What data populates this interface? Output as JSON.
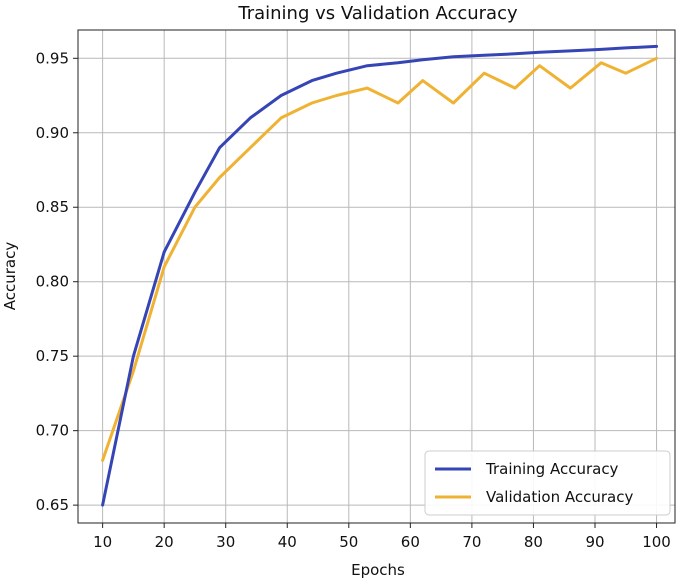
{
  "chart_data": {
    "type": "line",
    "title": "Training vs Validation Accuracy",
    "xlabel": "Epochs",
    "ylabel": "Accuracy",
    "xlim": [
      6,
      103
    ],
    "ylim": [
      0.638,
      0.969
    ],
    "xticks": [
      10,
      20,
      30,
      40,
      50,
      60,
      70,
      80,
      90,
      100
    ],
    "yticks": [
      0.65,
      0.7,
      0.75,
      0.8,
      0.85,
      0.9,
      0.95
    ],
    "ytick_labels": [
      "0.65",
      "0.70",
      "0.75",
      "0.80",
      "0.85",
      "0.90",
      "0.95"
    ],
    "grid": true,
    "legend_position": "lower-right",
    "series": [
      {
        "name": "Training Accuracy",
        "color": "#3545b5",
        "x": [
          10,
          15,
          20,
          25,
          29,
          34,
          39,
          44,
          48,
          53,
          58,
          62,
          67,
          72,
          77,
          81,
          86,
          91,
          95,
          100
        ],
        "y": [
          0.65,
          0.75,
          0.82,
          0.86,
          0.89,
          0.91,
          0.925,
          0.935,
          0.94,
          0.945,
          0.947,
          0.949,
          0.951,
          0.952,
          0.953,
          0.954,
          0.955,
          0.956,
          0.957,
          0.958
        ]
      },
      {
        "name": "Validation Accuracy",
        "color": "#f0b233",
        "x": [
          10,
          15,
          20,
          25,
          29,
          34,
          39,
          44,
          48,
          53,
          58,
          62,
          67,
          72,
          77,
          81,
          86,
          91,
          95,
          100
        ],
        "y": [
          0.68,
          0.74,
          0.81,
          0.85,
          0.87,
          0.89,
          0.91,
          0.92,
          0.925,
          0.93,
          0.92,
          0.935,
          0.92,
          0.94,
          0.93,
          0.945,
          0.93,
          0.947,
          0.94,
          0.95
        ]
      }
    ]
  }
}
